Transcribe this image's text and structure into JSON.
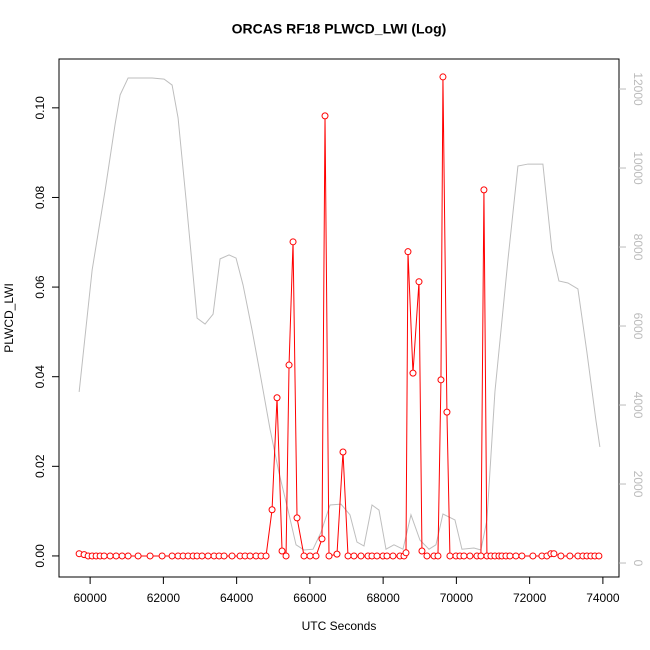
{
  "chart_data": {
    "type": "line",
    "title": "ORCAS RF18 PLWCD_LWI (Log)",
    "x_label": "UTC Seconds",
    "y_label": "PLWCD_LWI",
    "xlim": [
      59150,
      74440
    ],
    "xticks": [
      60000,
      62000,
      64000,
      66000,
      68000,
      70000,
      72000,
      74000
    ],
    "ylim": [
      -0.0047,
      0.1109
    ],
    "yticks": [
      {
        "value": 0,
        "label": "0.00"
      },
      {
        "value": 0.02,
        "label": "0.02"
      },
      {
        "value": 0.04,
        "label": "0.04"
      },
      {
        "value": 0.06,
        "label": "0.06"
      },
      {
        "value": 0.08,
        "label": "0.08"
      },
      {
        "value": 0.1,
        "label": "0.10"
      }
    ],
    "y2lim": [
      -354,
      12760
    ],
    "y2ticks": [
      0,
      2000,
      4000,
      6000,
      8000,
      10000,
      12000
    ],
    "series": [
      {
        "color": "#bebebe",
        "axis": "y2",
        "markers": false,
        "x": [
          59700,
          60055,
          60410,
          60682,
          60819,
          61037,
          61692,
          62020,
          62238,
          62401,
          62620,
          62920,
          63138,
          63357,
          63548,
          63793,
          63984,
          64175,
          64421,
          64667,
          64912,
          65158,
          65403,
          65622,
          65840,
          66086,
          66304,
          66550,
          66850,
          67095,
          67286,
          67477,
          67696,
          67887,
          68078,
          68296,
          68542,
          68760,
          69006,
          69252,
          69442,
          69633,
          69961,
          70152,
          70479,
          70670,
          70834,
          71052,
          71407,
          71680,
          71953,
          72362,
          72608,
          72800,
          73045,
          73318,
          73563,
          73809,
          73918
        ],
        "values": [
          4330,
          7420,
          9440,
          11110,
          11850,
          12280,
          12280,
          12250,
          12100,
          11270,
          9190,
          6200,
          6050,
          6300,
          7700,
          7800,
          7720,
          7040,
          5900,
          4660,
          3390,
          2280,
          1340,
          460,
          330,
          350,
          780,
          1470,
          1490,
          1220,
          530,
          430,
          1470,
          1340,
          350,
          460,
          350,
          1220,
          580,
          350,
          460,
          1240,
          1090,
          350,
          380,
          330,
          1090,
          4330,
          7670,
          10050,
          10100,
          10100,
          7920,
          7140,
          7090,
          6940,
          5340,
          3620,
          2940
        ]
      },
      {
        "color": "#ff0000",
        "markers": true,
        "x": [
          59700,
          59836,
          59946,
          60055,
          60164,
          60273,
          60382,
          60546,
          60710,
          60873,
          61037,
          61310,
          61637,
          61965,
          62238,
          62401,
          62538,
          62674,
          62811,
          62920,
          63056,
          63220,
          63384,
          63520,
          63657,
          63875,
          64094,
          64230,
          64367,
          64530,
          64667,
          64803,
          64967,
          65103,
          65240,
          65349,
          65431,
          65540,
          65649,
          65840,
          66004,
          66167,
          66331,
          66413,
          66522,
          66740,
          66904,
          67041,
          67204,
          67395,
          67587,
          67696,
          67832,
          67996,
          68105,
          68269,
          68460,
          68569,
          68624,
          68678,
          68815,
          68979,
          69060,
          69197,
          69388,
          69497,
          69579,
          69633,
          69742,
          69824,
          69988,
          70097,
          70206,
          70370,
          70561,
          70670,
          70752,
          70834,
          70943,
          71052,
          71162,
          71243,
          71353,
          71462,
          71625,
          71789,
          72089,
          72335,
          72472,
          72581,
          72663,
          72854,
          73099,
          73318,
          73454,
          73563,
          73672,
          73781,
          73891
        ],
        "values": [
          0.0005,
          0.0003,
          0,
          0,
          0,
          0,
          0,
          0,
          0,
          0,
          0,
          0,
          0,
          0,
          0,
          0,
          0,
          0,
          0,
          0,
          0,
          0,
          0,
          0,
          0,
          0,
          0,
          0,
          0,
          0,
          0,
          0,
          0.0103,
          0.0353,
          0.0011,
          0,
          0.0426,
          0.0701,
          0.0085,
          0,
          0,
          0,
          0.0038,
          0.0982,
          0,
          0.0004,
          0.0232,
          0,
          0,
          0,
          0,
          0,
          0,
          0,
          0,
          0,
          0,
          0,
          0.0007,
          0.0679,
          0.0408,
          0.0612,
          0.0011,
          0,
          0,
          0,
          0.0393,
          0.1069,
          0.0321,
          0,
          0,
          0,
          0,
          0,
          0,
          0,
          0.0817,
          0,
          0,
          0,
          0,
          0,
          0,
          0,
          0,
          0,
          0,
          0,
          0,
          0.0005,
          0.0005,
          0,
          0,
          0,
          0,
          0,
          0,
          0,
          0
        ]
      }
    ]
  }
}
